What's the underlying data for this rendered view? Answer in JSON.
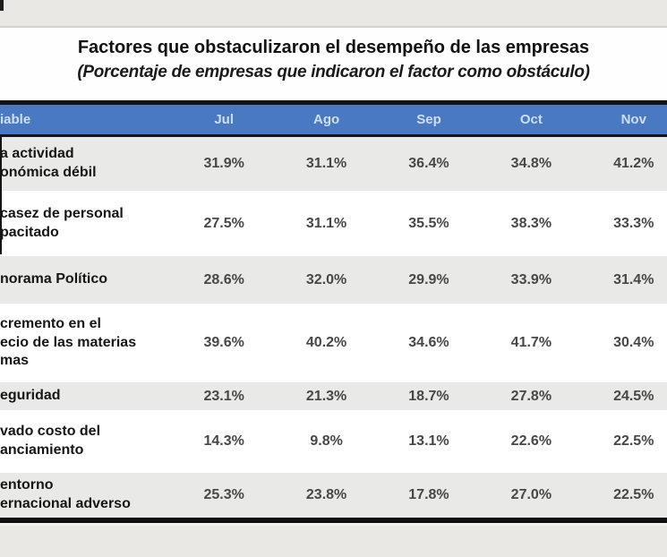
{
  "title": "Factores que obstaculizaron el desempeño de las empresas",
  "subtitle": "(Porcentaje de empresas que indicaron el factor como obstáculo)",
  "table": {
    "variable_header": "iable",
    "month_headers": [
      "Jul",
      "Ago",
      "Sep",
      "Oct",
      "Nov"
    ],
    "rows": [
      {
        "label": "a actividad\nonómica débil",
        "values": [
          "31.9%",
          "31.1%",
          "36.4%",
          "34.8%",
          "41.2%"
        ]
      },
      {
        "label": "casez de personal\npacitado",
        "values": [
          "27.5%",
          "31.1%",
          "35.5%",
          "38.3%",
          "33.3%"
        ]
      },
      {
        "label": "norama Político",
        "values": [
          "28.6%",
          "32.0%",
          "29.9%",
          "33.9%",
          "31.4%"
        ]
      },
      {
        "label": "cremento en el\necio de las materias\nmas",
        "values": [
          "39.6%",
          "40.2%",
          "34.6%",
          "41.7%",
          "30.4%"
        ]
      },
      {
        "label": "eguridad",
        "values": [
          "23.1%",
          "21.3%",
          "18.7%",
          "27.8%",
          "24.5%"
        ]
      },
      {
        "label": "vado costo del\nanciamiento",
        "values": [
          "14.3%",
          "9.8%",
          "13.1%",
          "22.6%",
          "22.5%"
        ]
      },
      {
        "label": "entorno\nernacional adverso",
        "values": [
          "25.3%",
          "23.8%",
          "17.8%",
          "27.0%",
          "22.5%"
        ]
      }
    ]
  },
  "chart_data": {
    "type": "table",
    "title": "Factores que obstaculizaron el desempeño de las empresas",
    "subtitle": "(Porcentaje de empresas que indicaron el factor como obstáculo)",
    "categories": [
      "Jul",
      "Ago",
      "Sep",
      "Oct",
      "Nov"
    ],
    "unit": "%",
    "series": [
      {
        "name": "a actividad onómica débil",
        "values": [
          31.9,
          31.1,
          36.4,
          34.8,
          41.2
        ]
      },
      {
        "name": "casez de personal pacitado",
        "values": [
          27.5,
          31.1,
          35.5,
          38.3,
          33.3
        ]
      },
      {
        "name": "norama Político",
        "values": [
          28.6,
          32.0,
          29.9,
          33.9,
          31.4
        ]
      },
      {
        "name": "cremento en el ecio de las materias mas",
        "values": [
          39.6,
          40.2,
          34.6,
          41.7,
          30.4
        ]
      },
      {
        "name": "eguridad",
        "values": [
          23.1,
          21.3,
          18.7,
          27.8,
          24.5
        ]
      },
      {
        "name": "vado costo del anciamiento",
        "values": [
          14.3,
          9.8,
          13.1,
          22.6,
          22.5
        ]
      },
      {
        "name": "entorno ernacional adverso",
        "values": [
          25.3,
          23.8,
          17.8,
          27.0,
          22.5
        ]
      }
    ]
  },
  "colors": {
    "header_bg": "#4a79c4",
    "header_text": "#cddff4",
    "row_alt_bg": "#e9e9e8",
    "border_black": "#101010",
    "page_band_bg": "#e9e8e5"
  }
}
